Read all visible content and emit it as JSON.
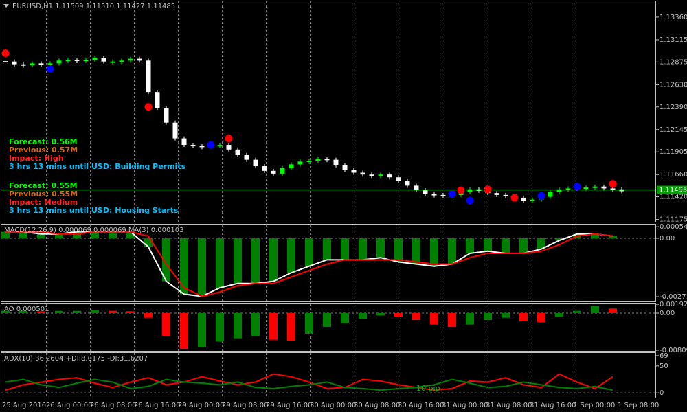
{
  "chart_data": [
    {
      "type": "candlestick",
      "title": "EURUSD,H1  1.11509 1.11510 1.11427 1.11485",
      "up_color": "#00ff00",
      "down_color": "#ffffff",
      "values": [
        1.1288,
        1.1285,
        1.1284,
        1.1286,
        1.1285,
        1.1286,
        1.1289,
        1.129,
        1.1289,
        1.129,
        1.1292,
        1.1288,
        1.1288,
        1.1289,
        1.1291,
        1.1289,
        1.1255,
        1.1238,
        1.1222,
        1.1205,
        1.1198,
        1.1197,
        1.1196,
        1.1198,
        1.1198,
        1.1193,
        1.1187,
        1.1182,
        1.1175,
        1.117,
        1.1167,
        1.1173,
        1.1177,
        1.118,
        1.1181,
        1.1183,
        1.1182,
        1.1176,
        1.1171,
        1.1168,
        1.1166,
        1.1165,
        1.1166,
        1.1163,
        1.1159,
        1.1154,
        1.1149,
        1.1145,
        1.1144,
        1.1143,
        1.1144,
        1.1147,
        1.115,
        1.1149,
        1.1146,
        1.1144,
        1.1143,
        1.1141,
        1.1138,
        1.1139,
        1.1142,
        1.1147,
        1.115,
        1.1151,
        1.1152,
        1.1152,
        1.1153,
        1.1151,
        1.115,
        1.1148
      ],
      "ylim": [
        1.1115,
        1.1353
      ],
      "yticks": [
        {
          "value": 1.1336,
          "label": "1.13360"
        },
        {
          "value": 1.13115,
          "label": "1.13115"
        },
        {
          "value": 1.12875,
          "label": "1.12875"
        },
        {
          "value": 1.1263,
          "label": "1.12630"
        },
        {
          "value": 1.1239,
          "label": "1.12390"
        },
        {
          "value": 1.12145,
          "label": "1.12145"
        },
        {
          "value": 1.11905,
          "label": "1.11905"
        },
        {
          "value": 1.1166,
          "label": "1.11660"
        },
        {
          "value": 1.1142,
          "label": "1.11420"
        },
        {
          "value": 1.11175,
          "label": "1.11175"
        }
      ],
      "current_price": {
        "value": 1.11495,
        "label": "1.11495"
      },
      "signals": [
        {
          "bar": 0,
          "price": 1.1297,
          "color": "#ff0000"
        },
        {
          "bar": 5,
          "price": 1.128,
          "color": "#0000ff"
        },
        {
          "bar": 16,
          "price": 1.1239,
          "color": "#ff0000"
        },
        {
          "bar": 23,
          "price": 1.1198,
          "color": "#0000ff"
        },
        {
          "bar": 25,
          "price": 1.1205,
          "color": "#ff0000"
        },
        {
          "bar": 50,
          "price": 1.1145,
          "color": "#0000ff"
        },
        {
          "bar": 51,
          "price": 1.1149,
          "color": "#ff0000"
        },
        {
          "bar": 52,
          "price": 1.1138,
          "color": "#0000ff"
        },
        {
          "bar": 54,
          "price": 1.115,
          "color": "#ff0000"
        },
        {
          "bar": 57,
          "price": 1.1141,
          "color": "#ff0000"
        },
        {
          "bar": 60,
          "price": 1.1143,
          "color": "#0000ff"
        },
        {
          "bar": 64,
          "price": 1.1153,
          "color": "#0000ff"
        },
        {
          "bar": 68,
          "price": 1.1156,
          "color": "#ff0000"
        }
      ],
      "news": [
        {
          "forecast": "Forecast: 0.56M",
          "previous": "Previous: 0.57M",
          "impact": "Impact: High",
          "event": "3 hrs 13 mins until USD: Building Permits"
        },
        {
          "forecast": "Forecast: 0.55M",
          "previous": "Previous: 0.55M",
          "impact": "Impact: Medium",
          "event": "3 hrs 13 mins until USD: Housing Starts"
        }
      ],
      "time_labels": [
        "25 Aug 2016",
        "26 Aug 00:00",
        "26 Aug 08:00",
        "26 Aug 16:00",
        "29 Aug 00:00",
        "29 Aug 08:00",
        "29 Aug 16:00",
        "30 Aug 00:00",
        "30 Aug 08:00",
        "30 Aug 16:00",
        "31 Aug 00:00",
        "31 Aug 08:00",
        "31 Aug 16:00",
        "1 Sep 00:00",
        "1 Sep 08:00"
      ]
    },
    {
      "type": "bar-line",
      "title": "MACD(12,26,9) 0.000069 0.000069 MA(3) 0.000103",
      "color": "#008000",
      "values": [
        0.0003,
        0.0003,
        0.0002,
        0.0002,
        0.0003,
        0.0003,
        0.0003,
        0.0003,
        -0.0004,
        -0.002,
        -0.0026,
        -0.0027,
        -0.0023,
        -0.0021,
        -0.0021,
        -0.002,
        -0.0016,
        -0.0013,
        -0.001,
        -0.001,
        -0.001,
        -0.0009,
        -0.0011,
        -0.0012,
        -0.0013,
        -0.0012,
        -0.0007,
        -0.0006,
        -0.0007,
        -0.0007,
        -0.0005,
        -0.0001,
        0.0002,
        0.0002,
        0.0001
      ],
      "series": [
        {
          "color": "#ffffff",
          "values": [
            0.0003,
            0.0003,
            0.0002,
            0.0002,
            0.0003,
            0.0003,
            0.0003,
            0.0003,
            -0.0004,
            -0.002,
            -0.0026,
            -0.0027,
            -0.0023,
            -0.0021,
            -0.0021,
            -0.002,
            -0.0016,
            -0.0013,
            -0.001,
            -0.001,
            -0.001,
            -0.0009,
            -0.0011,
            -0.0012,
            -0.0013,
            -0.0012,
            -0.0007,
            -0.0006,
            -0.0007,
            -0.0007,
            -0.0005,
            -0.0001,
            0.0002,
            0.0002,
            0.0001
          ]
        },
        {
          "color": "#ff0000",
          "values": [
            0.0003,
            0.0003,
            0.0003,
            0.0002,
            0.0002,
            0.0003,
            0.0003,
            0.0003,
            0.0001,
            -0.0012,
            -0.0023,
            -0.0027,
            -0.0025,
            -0.0022,
            -0.0021,
            -0.0021,
            -0.0018,
            -0.0015,
            -0.0012,
            -0.001,
            -0.001,
            -0.001,
            -0.001,
            -0.0011,
            -0.0012,
            -0.0012,
            -0.0009,
            -0.0007,
            -0.0007,
            -0.0007,
            -0.0006,
            -0.0003,
            0.0001,
            0.0002,
            0.0001
          ]
        }
      ],
      "ylim": [
        -0.00297,
        0.00064
      ],
      "yticks": [
        0.000541,
        {
          "value": 0,
          "label": "0.00"
        },
        -0.002714
      ]
    },
    {
      "type": "bar",
      "title": "AO 0.000501",
      "up_color": "#008000",
      "down_color": "#ff0000",
      "values": [
        0.0005,
        0.0005,
        0.0004,
        0.0005,
        0.0005,
        0.0006,
        0.0005,
        0.0004,
        -0.001,
        -0.005,
        -0.0078,
        -0.0075,
        -0.0062,
        -0.0055,
        -0.005,
        -0.0058,
        -0.006,
        -0.0045,
        -0.003,
        -0.0022,
        -0.0012,
        -0.0005,
        -0.0008,
        -0.0015,
        -0.0025,
        -0.003,
        -0.0025,
        -0.0015,
        -0.001,
        -0.0018,
        -0.002,
        -0.0008,
        0.0005,
        0.0015,
        0.001
      ],
      "ylim": [
        -0.0084,
        0.0021
      ],
      "yticks": [
        0.001924,
        {
          "value": 0,
          "label": "0.00"
        },
        -0.008096
      ]
    },
    {
      "type": "line",
      "title": "ADX(10) 36.2604 +DI:8.0175 -DI:31.6207",
      "annotation": "10 pip",
      "series": [
        {
          "color": "#ff0000",
          "values": [
            5,
            15,
            20,
            25,
            28,
            18,
            10,
            20,
            28,
            15,
            20,
            30,
            22,
            15,
            20,
            35,
            30,
            20,
            8,
            10,
            25,
            22,
            15,
            10,
            5,
            8,
            22,
            20,
            28,
            15,
            10,
            35,
            20,
            8,
            30
          ]
        },
        {
          "color": "#008000",
          "values": [
            20,
            25,
            15,
            10,
            18,
            25,
            20,
            8,
            12,
            25,
            20,
            18,
            15,
            20,
            10,
            8,
            12,
            15,
            20,
            10,
            8,
            5,
            8,
            10,
            15,
            25,
            18,
            10,
            12,
            20,
            15,
            10,
            8,
            12,
            5
          ]
        }
      ],
      "ylim": [
        -10,
        74
      ],
      "yticks": [
        69,
        50,
        0
      ]
    }
  ]
}
